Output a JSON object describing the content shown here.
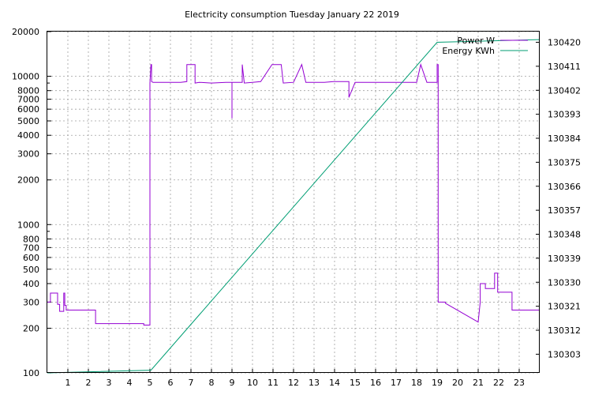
{
  "chart_data": {
    "type": "line",
    "title": "Electricity consumption Tuesday January 22 2019",
    "xlabel": "",
    "ylabel": "",
    "y2label": "",
    "grid": true,
    "legend_placement": "top-right",
    "xlim": [
      0,
      24
    ],
    "ylim": [
      100,
      20000
    ],
    "y_scale": "log",
    "y2lim": [
      130296,
      130424
    ],
    "x_ticks": [
      1,
      2,
      3,
      4,
      5,
      6,
      7,
      8,
      9,
      10,
      11,
      12,
      13,
      14,
      15,
      16,
      17,
      18,
      19,
      20,
      21,
      22,
      23
    ],
    "y_ticks": [
      100,
      200,
      300,
      400,
      500,
      600,
      700,
      800,
      1000,
      2000,
      3000,
      4000,
      5000,
      6000,
      7000,
      8000,
      10000,
      20000
    ],
    "y2_ticks": [
      130303,
      130312,
      130321,
      130330,
      130339,
      130348,
      130357,
      130366,
      130375,
      130384,
      130393,
      130402,
      130411,
      130420
    ],
    "series": [
      {
        "name": "Power W",
        "color": "#9400d3",
        "axis": "left",
        "x": [
          0.0,
          0.15,
          0.15,
          0.5,
          0.5,
          0.6,
          0.6,
          0.8,
          0.8,
          0.85,
          0.85,
          0.92,
          0.92,
          2.35,
          2.35,
          4.7,
          4.7,
          5.0,
          5.0,
          5.05,
          5.08,
          5.08,
          5.15,
          6.0,
          6.5,
          6.8,
          6.8,
          7.2,
          7.2,
          7.4,
          8.0,
          8.7,
          9.0,
          9.0,
          9.0,
          9.1,
          9.5,
          9.5,
          9.6,
          10.0,
          10.4,
          10.95,
          11.4,
          11.5,
          12.0,
          12.4,
          12.6,
          13.0,
          13.5,
          13.95,
          14.7,
          14.7,
          15.0,
          16.0,
          16.6,
          17.0,
          17.5,
          18.0,
          18.2,
          18.5,
          19.0,
          19.0,
          19.05,
          19.05,
          19.4,
          19.4,
          21.0,
          21.0,
          21.1,
          21.1,
          21.35,
          21.35,
          21.8,
          21.8,
          21.95,
          21.95,
          22.65,
          22.65,
          24.0
        ],
        "y": [
          300,
          300,
          345,
          345,
          290,
          290,
          260,
          260,
          345,
          345,
          285,
          285,
          265,
          265,
          215,
          215,
          210,
          210,
          9000,
          12000,
          12000,
          9200,
          9100,
          9100,
          9100,
          9200,
          12000,
          12000,
          9000,
          9100,
          9000,
          9100,
          9100,
          5200,
          9100,
          9100,
          9100,
          12000,
          9000,
          9100,
          9200,
          12000,
          12000,
          9000,
          9100,
          12000,
          9100,
          9100,
          9100,
          9200,
          9200,
          7200,
          9100,
          9100,
          9100,
          9100,
          9100,
          9100,
          12000,
          9100,
          9100,
          12000,
          12000,
          300,
          300,
          295,
          220,
          220,
          300,
          400,
          400,
          370,
          370,
          470,
          470,
          350,
          350,
          265,
          265
        ]
      },
      {
        "name": "Energy KWh",
        "color": "#009e73",
        "axis": "right",
        "x": [
          0.0,
          5.05,
          19.0,
          24.0
        ],
        "y": [
          130296.0,
          130297.0,
          130420.0,
          130421.0
        ]
      }
    ]
  }
}
